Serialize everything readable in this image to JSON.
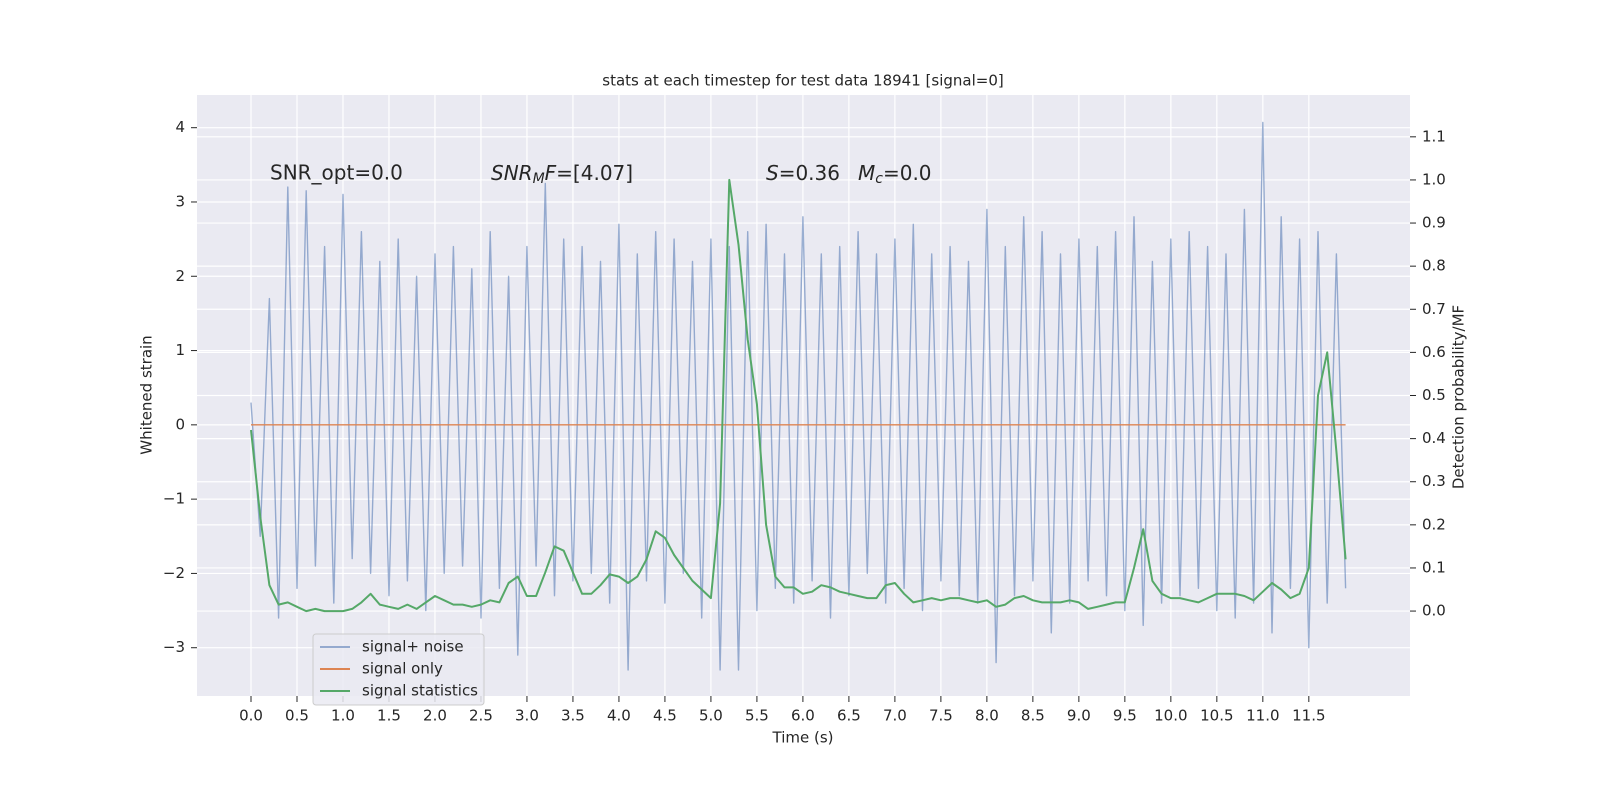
{
  "chart_data": {
    "type": "line",
    "title": "stats at each timestep for test data 18941 [signal=0]",
    "xlabel": "Time (s)",
    "ylabel": "Whitened strain",
    "y2label": "Detection probability/MF",
    "annotations": {
      "snr_opt": "SNR_opt=0.0",
      "snr_mf": [
        "SNR",
        "M",
        "F",
        "=[4.07]"
      ],
      "s": [
        "S",
        "=0.36"
      ],
      "mc": [
        "M",
        "c",
        "=0.0"
      ]
    },
    "xlim": [
      -0.587,
      12.6
    ],
    "ylim": [
      -3.65,
      4.44
    ],
    "y2lim": [
      -0.197,
      1.197
    ],
    "xticks": [
      {
        "value": 0,
        "label": "0.0"
      },
      0.5,
      {
        "value": 1,
        "label": "1.0"
      },
      1.5,
      {
        "value": 2,
        "label": "2.0"
      },
      2.5,
      {
        "value": 3,
        "label": "3.0"
      },
      3.5,
      {
        "value": 4,
        "label": "4.0"
      },
      4.5,
      {
        "value": 5,
        "label": "5.0"
      },
      5.5,
      {
        "value": 6,
        "label": "6.0"
      },
      6.5,
      {
        "value": 7,
        "label": "7.0"
      },
      7.5,
      {
        "value": 8,
        "label": "8.0"
      },
      8.5,
      {
        "value": 9,
        "label": "9.0"
      },
      9.5,
      {
        "value": 10,
        "label": "10.0"
      },
      10.5,
      {
        "value": 11,
        "label": "11.0"
      },
      11.5
    ],
    "yticks": [
      {
        "value": -3,
        "label": "−3"
      },
      {
        "value": -2,
        "label": "−2"
      },
      {
        "value": -1,
        "label": "−1"
      },
      0,
      1,
      2,
      3,
      4
    ],
    "y2ticks": [
      {
        "value": 0,
        "label": "0.0"
      },
      0.1,
      0.2,
      0.3,
      0.4,
      0.5,
      0.6,
      0.7,
      0.8,
      0.9,
      {
        "value": 1,
        "label": "1.0"
      },
      1.1
    ],
    "grid": true,
    "background": "#eaeaf2",
    "x": [
      0,
      0.1,
      0.2,
      0.3,
      0.4,
      0.5,
      0.6,
      0.7,
      0.8,
      0.9,
      1,
      1.1,
      1.2,
      1.3,
      1.4,
      1.5,
      1.6,
      1.7,
      1.8,
      1.9,
      2,
      2.1,
      2.2,
      2.3,
      2.4,
      2.5,
      2.6,
      2.7,
      2.8,
      2.9,
      3,
      3.1,
      3.2,
      3.3,
      3.4,
      3.5,
      3.6,
      3.7,
      3.8,
      3.9,
      4,
      4.1,
      4.2,
      4.3,
      4.4,
      4.5,
      4.6,
      4.7,
      4.8,
      4.9,
      5,
      5.1,
      5.2,
      5.3,
      5.4,
      5.5,
      5.6,
      5.7,
      5.8,
      5.9,
      6,
      6.1,
      6.2,
      6.3,
      6.4,
      6.5,
      6.6,
      6.7,
      6.8,
      6.9,
      7,
      7.1,
      7.2,
      7.3,
      7.4,
      7.5,
      7.6,
      7.7,
      7.8,
      7.9,
      8,
      8.1,
      8.2,
      8.3,
      8.4,
      8.5,
      8.6,
      8.7,
      8.8,
      8.9,
      9,
      9.1,
      9.2,
      9.3,
      9.4,
      9.5,
      9.6,
      9.7,
      9.8,
      9.9,
      10,
      10.1,
      10.2,
      10.3,
      10.4,
      10.5,
      10.6,
      10.7,
      10.8,
      10.9,
      11,
      11.1,
      11.2,
      11.3,
      11.4,
      11.5,
      11.6,
      11.7,
      11.8,
      11.9
    ],
    "series": [
      {
        "name": "signal+ noise",
        "color": "#4c72b0",
        "opacity": 0.55,
        "values": [
          0.3,
          -1.5,
          1.7,
          -2.6,
          3.2,
          -2.2,
          3.15,
          -1.9,
          2.4,
          -2.4,
          3.1,
          -1.8,
          2.6,
          -2.0,
          2.2,
          -2.3,
          2.5,
          -2.1,
          2.0,
          -2.5,
          2.3,
          -2.0,
          2.4,
          -1.9,
          2.1,
          -2.6,
          2.6,
          -2.2,
          2.0,
          -3.1,
          2.4,
          -1.9,
          3.25,
          -2.3,
          2.5,
          -2.1,
          2.4,
          -2.0,
          2.2,
          -2.4,
          2.7,
          -3.3,
          2.3,
          -2.1,
          2.6,
          -2.4,
          2.5,
          -2.0,
          2.2,
          -2.6,
          2.5,
          -3.3,
          2.4,
          -3.3,
          2.6,
          -2.5,
          2.7,
          -2.2,
          2.3,
          -2.4,
          2.8,
          -2.1,
          2.3,
          -2.6,
          2.4,
          -2.3,
          2.6,
          -2.0,
          2.3,
          -2.4,
          2.5,
          -2.2,
          2.7,
          -2.5,
          2.3,
          -2.1,
          2.4,
          -2.3,
          2.2,
          -2.4,
          2.9,
          -3.2,
          2.4,
          -2.3,
          2.8,
          -2.1,
          2.6,
          -2.8,
          2.3,
          -2.4,
          2.5,
          -2.1,
          2.4,
          -2.3,
          2.6,
          -2.5,
          2.8,
          -2.7,
          2.2,
          -2.4,
          2.5,
          -2.3,
          2.6,
          -2.2,
          2.4,
          -2.5,
          2.3,
          -2.6,
          2.9,
          -2.4,
          4.07,
          -2.8,
          2.8,
          -2.2,
          2.5,
          -3.0,
          2.6,
          -2.4,
          2.3,
          -2.2
        ]
      },
      {
        "name": "signal only",
        "color": "#dd8452",
        "opacity": 1,
        "values": [
          0,
          0,
          0,
          0,
          0,
          0,
          0,
          0,
          0,
          0,
          0,
          0,
          0,
          0,
          0,
          0,
          0,
          0,
          0,
          0,
          0,
          0,
          0,
          0,
          0,
          0,
          0,
          0,
          0,
          0,
          0,
          0,
          0,
          0,
          0,
          0,
          0,
          0,
          0,
          0,
          0,
          0,
          0,
          0,
          0,
          0,
          0,
          0,
          0,
          0,
          0,
          0,
          0,
          0,
          0,
          0,
          0,
          0,
          0,
          0,
          0,
          0,
          0,
          0,
          0,
          0,
          0,
          0,
          0,
          0,
          0,
          0,
          0,
          0,
          0,
          0,
          0,
          0,
          0,
          0,
          0,
          0,
          0,
          0,
          0,
          0,
          0,
          0,
          0,
          0,
          0,
          0,
          0,
          0,
          0,
          0,
          0,
          0,
          0,
          0,
          0,
          0,
          0,
          0,
          0,
          0,
          0,
          0,
          0,
          0,
          0,
          0,
          0,
          0,
          0,
          0,
          0,
          0,
          0,
          0
        ]
      },
      {
        "name": "signal statistics",
        "color": "#55a868",
        "opacity": 1,
        "axis": "y2",
        "values": [
          0.42,
          0.22,
          0.06,
          0.015,
          0.02,
          0.01,
          0.0,
          0.005,
          0.0,
          0.0,
          0.0,
          0.005,
          0.02,
          0.04,
          0.015,
          0.01,
          0.005,
          0.015,
          0.005,
          0.02,
          0.035,
          0.025,
          0.015,
          0.015,
          0.01,
          0.015,
          0.025,
          0.02,
          0.065,
          0.08,
          0.035,
          0.035,
          0.09,
          0.15,
          0.14,
          0.09,
          0.04,
          0.04,
          0.06,
          0.085,
          0.08,
          0.065,
          0.08,
          0.12,
          0.185,
          0.17,
          0.13,
          0.1,
          0.07,
          0.05,
          0.03,
          0.25,
          1.0,
          0.85,
          0.63,
          0.48,
          0.2,
          0.08,
          0.055,
          0.055,
          0.04,
          0.045,
          0.06,
          0.055,
          0.045,
          0.04,
          0.035,
          0.03,
          0.03,
          0.06,
          0.065,
          0.04,
          0.02,
          0.025,
          0.03,
          0.025,
          0.03,
          0.03,
          0.025,
          0.02,
          0.025,
          0.01,
          0.015,
          0.03,
          0.035,
          0.025,
          0.02,
          0.02,
          0.02,
          0.025,
          0.02,
          0.005,
          0.01,
          0.015,
          0.02,
          0.02,
          0.1,
          0.19,
          0.07,
          0.04,
          0.03,
          0.03,
          0.025,
          0.02,
          0.03,
          0.04,
          0.04,
          0.04,
          0.035,
          0.025,
          0.045,
          0.065,
          0.05,
          0.03,
          0.04,
          0.1,
          0.5,
          0.6,
          0.37,
          0.12
        ]
      }
    ]
  }
}
